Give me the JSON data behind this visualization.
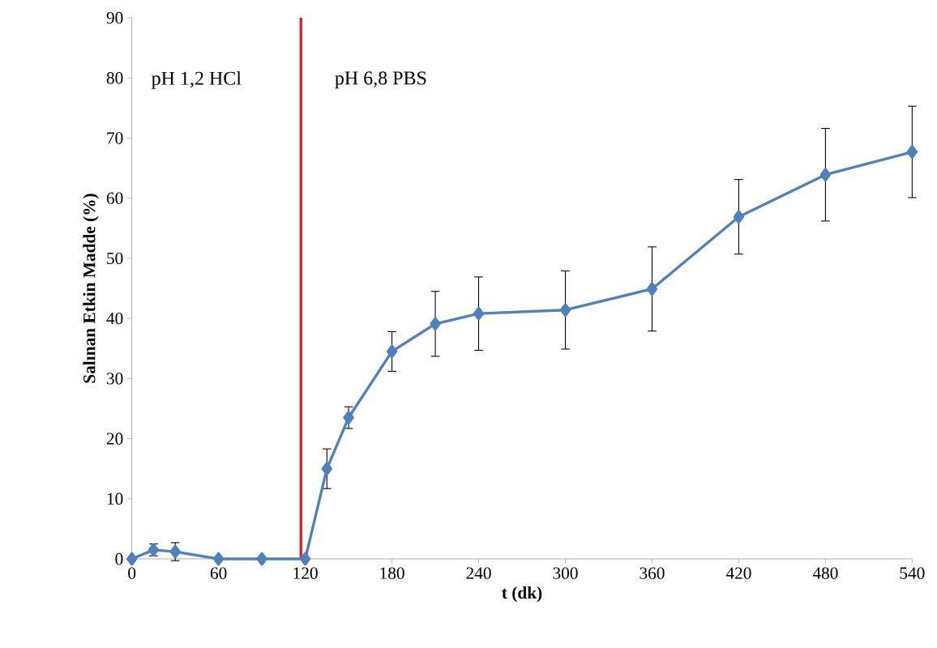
{
  "chart_data": {
    "type": "line",
    "xlabel": "t (dk)",
    "ylabel": "Salınan Etkin Madde (%)",
    "x": [
      0,
      15,
      30,
      60,
      90,
      120,
      135,
      150,
      180,
      210,
      240,
      300,
      360,
      420,
      480,
      540
    ],
    "series": [
      {
        "color": "#4f81bd",
        "values": [
          0,
          1.5,
          1.2,
          0,
          0,
          0,
          15.0,
          23.5,
          34.5,
          39.1,
          40.8,
          41.4,
          44.9,
          56.9,
          63.9,
          67.7
        ],
        "errors": [
          null,
          1,
          1.5,
          null,
          null,
          null,
          3.3,
          1.8,
          3.3,
          5.4,
          6.1,
          6.5,
          7,
          6.2,
          7.7,
          7.6
        ]
      }
    ],
    "marker": "diamond",
    "line_style": "solid",
    "grid": false,
    "xlim": [
      0,
      540
    ],
    "xticks": [
      0,
      60,
      120,
      180,
      240,
      300,
      360,
      420,
      480,
      540
    ],
    "ylim": [
      0,
      90
    ],
    "yticks": [
      0,
      10,
      20,
      30,
      40,
      50,
      60,
      70,
      80,
      90
    ],
    "ref_lines": [
      {
        "axis": "x",
        "value": 117,
        "color": "#e02020"
      }
    ],
    "annotations": [
      "pH 1,2 HCl",
      "pH 6,8 PBS"
    ]
  }
}
